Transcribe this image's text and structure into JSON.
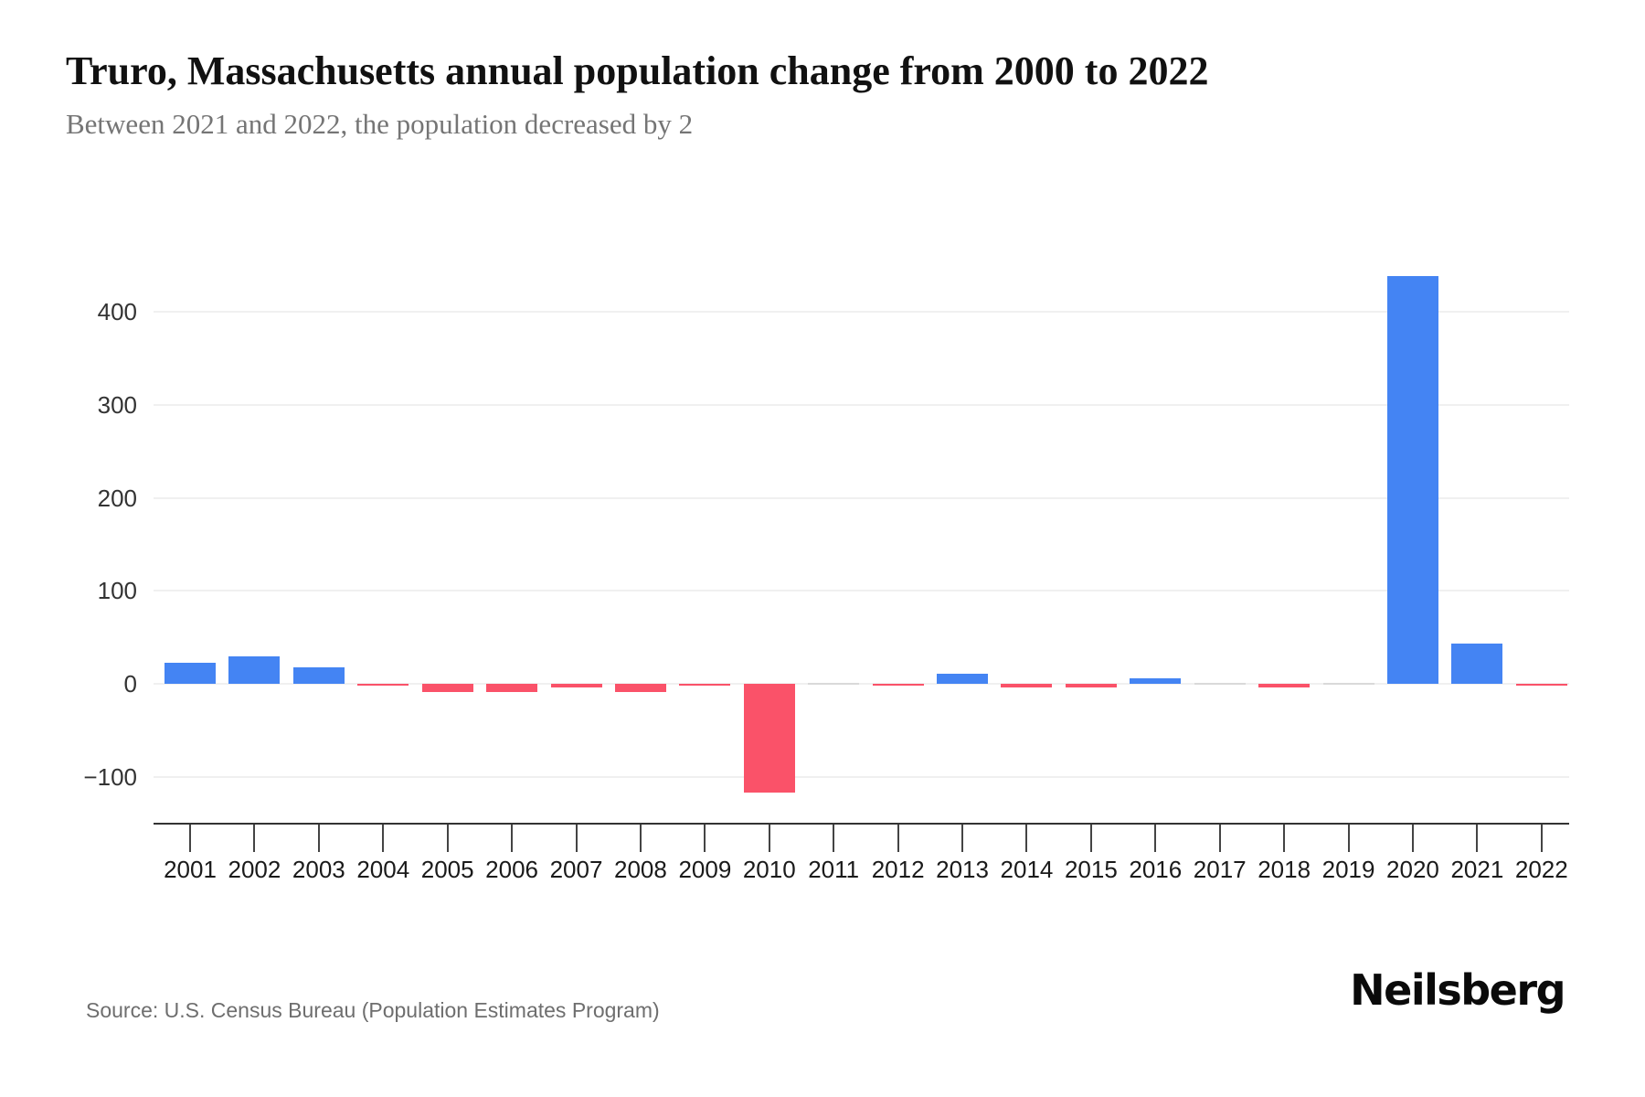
{
  "header": {
    "title": "Truro, Massachusetts annual population change from 2000 to 2022",
    "subtitle": "Between 2021 and 2022, the population decreased by 2"
  },
  "footer": {
    "source": "Source: U.S. Census Bureau (Population Estimates Program)",
    "brand": "Neilsberg"
  },
  "chart_data": {
    "type": "bar",
    "title": "Truro, Massachusetts annual population change from 2000 to 2022",
    "subtitle": "Between 2021 and 2022, the population decreased by 2",
    "categories": [
      "2001",
      "2002",
      "2003",
      "2004",
      "2005",
      "2006",
      "2007",
      "2008",
      "2009",
      "2010",
      "2011",
      "2012",
      "2013",
      "2014",
      "2015",
      "2016",
      "2017",
      "2018",
      "2019",
      "2020",
      "2021",
      "2022"
    ],
    "values": [
      23,
      30,
      18,
      -2,
      -9,
      -9,
      -4,
      -9,
      -2,
      -117,
      0,
      -2,
      11,
      -4,
      -4,
      6,
      0,
      -4,
      0,
      439,
      43,
      -2
    ],
    "xlabel": "",
    "ylabel": "",
    "yticks": [
      400,
      300,
      200,
      100,
      0,
      -100
    ],
    "ylim": [
      -150,
      460
    ],
    "grid": true,
    "legend": false,
    "colors": {
      "positive": "#4484f3",
      "negative": "#fa5269",
      "zero": "#d9d9d9",
      "gridline": "#f0f0f0",
      "axis": "#333333"
    }
  }
}
